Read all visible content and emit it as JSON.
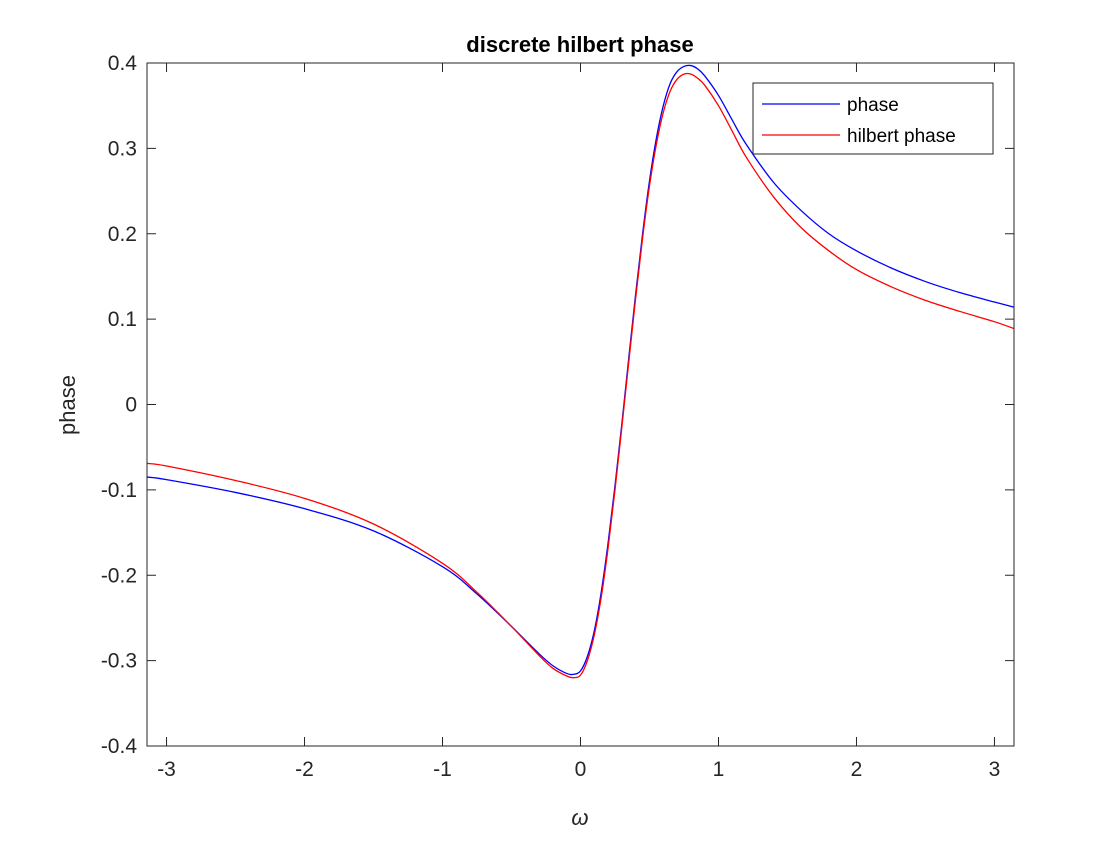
{
  "chart_data": {
    "type": "line",
    "title": "discrete hilbert phase",
    "xlabel": "ω",
    "ylabel": "phase",
    "xlim": [
      -3.14159,
      3.14159
    ],
    "ylim": [
      -0.4,
      0.4
    ],
    "x_ticks": [
      -3,
      -2,
      -1,
      0,
      1,
      2,
      3
    ],
    "x_tick_labels": [
      "-3",
      "-2",
      "-1",
      "0",
      "1",
      "2",
      "3"
    ],
    "y_ticks": [
      -0.4,
      -0.3,
      -0.2,
      -0.1,
      0,
      0.1,
      0.2,
      0.3,
      0.4
    ],
    "y_tick_labels": [
      "-0.4",
      "-0.3",
      "-0.2",
      "-0.1",
      "0",
      "0.1",
      "0.2",
      "0.3",
      "0.4"
    ],
    "grid": false,
    "box": true,
    "legend_position": "top-right",
    "x": [
      -3.14,
      -3.0,
      -2.5,
      -2.0,
      -1.5,
      -1.0,
      -0.75,
      -0.5,
      -0.3,
      -0.2,
      -0.1,
      -0.05,
      0.0,
      0.05,
      0.1,
      0.15,
      0.2,
      0.25,
      0.3,
      0.35,
      0.4,
      0.45,
      0.5,
      0.55,
      0.6,
      0.65,
      0.7,
      0.75,
      0.8,
      0.85,
      0.9,
      1.0,
      1.1,
      1.2,
      1.4,
      1.6,
      1.8,
      2.0,
      2.25,
      2.5,
      2.75,
      3.0,
      3.14
    ],
    "series": [
      {
        "name": "phase",
        "color": "#0000ff",
        "values": [
          -0.085,
          -0.088,
          -0.103,
          -0.122,
          -0.148,
          -0.19,
          -0.222,
          -0.26,
          -0.292,
          -0.306,
          -0.315,
          -0.316,
          -0.312,
          -0.295,
          -0.265,
          -0.22,
          -0.162,
          -0.095,
          -0.022,
          0.055,
          0.13,
          0.2,
          0.262,
          0.312,
          0.35,
          0.376,
          0.39,
          0.396,
          0.397,
          0.393,
          0.385,
          0.362,
          0.333,
          0.305,
          0.26,
          0.227,
          0.2,
          0.18,
          0.16,
          0.144,
          0.131,
          0.12,
          0.114
        ]
      },
      {
        "name": "hilbert phase",
        "color": "#ff0000",
        "values": [
          -0.069,
          -0.072,
          -0.089,
          -0.11,
          -0.14,
          -0.186,
          -0.22,
          -0.26,
          -0.294,
          -0.309,
          -0.318,
          -0.32,
          -0.317,
          -0.3,
          -0.27,
          -0.226,
          -0.168,
          -0.1,
          -0.026,
          0.05,
          0.125,
          0.195,
          0.256,
          0.305,
          0.342,
          0.367,
          0.381,
          0.387,
          0.387,
          0.382,
          0.374,
          0.35,
          0.32,
          0.29,
          0.243,
          0.207,
          0.18,
          0.158,
          0.138,
          0.122,
          0.109,
          0.097,
          0.089
        ]
      }
    ]
  }
}
